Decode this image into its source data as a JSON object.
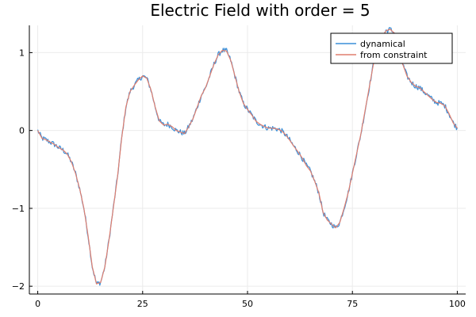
{
  "chart_data": {
    "type": "line",
    "title": "Electric Field with order = 5",
    "xlabel": "",
    "ylabel": "",
    "xlim": [
      -2,
      102
    ],
    "ylim": [
      -2.1,
      1.35
    ],
    "xticks": [
      0,
      25,
      50,
      75,
      100
    ],
    "yticks": [
      -2,
      -1,
      0,
      1
    ],
    "ytick_labels": [
      "−2",
      "−1",
      "0",
      "1"
    ],
    "grid": true,
    "legend_position": "top-right",
    "series": [
      {
        "name": "dynamical",
        "color": "#3a8fd8",
        "noise": 0.035,
        "x": [
          0,
          1,
          2,
          3,
          4,
          5,
          6,
          7,
          8,
          9,
          10,
          11,
          12,
          13,
          14,
          15,
          16,
          17,
          18,
          19,
          20,
          21,
          22,
          23,
          24,
          25,
          26,
          27,
          28,
          29,
          30,
          31,
          32,
          33,
          34,
          35,
          36,
          37,
          38,
          39,
          40,
          41,
          42,
          43,
          44,
          45,
          46,
          47,
          48,
          49,
          50,
          51,
          52,
          53,
          54,
          55,
          56,
          57,
          58,
          59,
          60,
          61,
          62,
          63,
          64,
          65,
          66,
          67,
          68,
          69,
          70,
          71,
          72,
          73,
          74,
          75,
          76,
          77,
          78,
          79,
          80,
          81,
          82,
          83,
          84,
          85,
          86,
          87,
          88,
          89,
          90,
          91,
          92,
          93,
          94,
          95,
          96,
          97,
          98,
          99,
          100
        ],
        "y": [
          0.0,
          -0.1,
          -0.12,
          -0.15,
          -0.18,
          -0.22,
          -0.25,
          -0.3,
          -0.4,
          -0.55,
          -0.75,
          -1.0,
          -1.35,
          -1.75,
          -1.97,
          -1.95,
          -1.75,
          -1.4,
          -1.0,
          -0.6,
          -0.1,
          0.3,
          0.5,
          0.58,
          0.65,
          0.7,
          0.67,
          0.52,
          0.3,
          0.12,
          0.07,
          0.08,
          0.05,
          0.0,
          -0.02,
          -0.04,
          0.05,
          0.15,
          0.3,
          0.45,
          0.55,
          0.7,
          0.85,
          0.97,
          1.03,
          1.02,
          0.9,
          0.7,
          0.5,
          0.35,
          0.27,
          0.2,
          0.12,
          0.08,
          0.05,
          0.03,
          0.03,
          0.02,
          0.0,
          -0.05,
          -0.12,
          -0.2,
          -0.27,
          -0.35,
          -0.45,
          -0.52,
          -0.65,
          -0.8,
          -1.05,
          -1.15,
          -1.2,
          -1.25,
          -1.18,
          -1.0,
          -0.8,
          -0.55,
          -0.3,
          -0.05,
          0.25,
          0.55,
          0.85,
          1.05,
          1.2,
          1.28,
          1.3,
          1.25,
          1.05,
          0.85,
          0.7,
          0.62,
          0.57,
          0.55,
          0.5,
          0.45,
          0.4,
          0.36,
          0.35,
          0.32,
          0.22,
          0.1,
          0.03
        ]
      },
      {
        "name": "from constraint",
        "color": "#e07f6f",
        "noise": 0.0,
        "x": [
          0,
          1,
          2,
          3,
          4,
          5,
          6,
          7,
          8,
          9,
          10,
          11,
          12,
          13,
          14,
          15,
          16,
          17,
          18,
          19,
          20,
          21,
          22,
          23,
          24,
          25,
          26,
          27,
          28,
          29,
          30,
          31,
          32,
          33,
          34,
          35,
          36,
          37,
          38,
          39,
          40,
          41,
          42,
          43,
          44,
          45,
          46,
          47,
          48,
          49,
          50,
          51,
          52,
          53,
          54,
          55,
          56,
          57,
          58,
          59,
          60,
          61,
          62,
          63,
          64,
          65,
          66,
          67,
          68,
          69,
          70,
          71,
          72,
          73,
          74,
          75,
          76,
          77,
          78,
          79,
          80,
          81,
          82,
          83,
          84,
          85,
          86,
          87,
          88,
          89,
          90,
          91,
          92,
          93,
          94,
          95,
          96,
          97,
          98,
          99,
          100
        ],
        "y": [
          0.0,
          -0.1,
          -0.12,
          -0.15,
          -0.18,
          -0.22,
          -0.25,
          -0.3,
          -0.4,
          -0.55,
          -0.75,
          -1.0,
          -1.35,
          -1.75,
          -1.97,
          -1.95,
          -1.75,
          -1.4,
          -1.0,
          -0.6,
          -0.1,
          0.3,
          0.5,
          0.58,
          0.65,
          0.7,
          0.67,
          0.52,
          0.3,
          0.12,
          0.07,
          0.08,
          0.05,
          0.0,
          -0.02,
          -0.04,
          0.05,
          0.15,
          0.3,
          0.45,
          0.55,
          0.7,
          0.85,
          0.97,
          1.03,
          1.02,
          0.9,
          0.7,
          0.5,
          0.35,
          0.27,
          0.2,
          0.12,
          0.08,
          0.05,
          0.03,
          0.03,
          0.02,
          0.0,
          -0.05,
          -0.12,
          -0.2,
          -0.27,
          -0.35,
          -0.45,
          -0.52,
          -0.65,
          -0.8,
          -1.05,
          -1.15,
          -1.2,
          -1.25,
          -1.18,
          -1.0,
          -0.8,
          -0.55,
          -0.3,
          -0.05,
          0.25,
          0.55,
          0.85,
          1.05,
          1.2,
          1.28,
          1.3,
          1.25,
          1.05,
          0.85,
          0.7,
          0.62,
          0.57,
          0.55,
          0.5,
          0.45,
          0.4,
          0.36,
          0.35,
          0.32,
          0.22,
          0.1,
          0.03
        ]
      }
    ]
  }
}
